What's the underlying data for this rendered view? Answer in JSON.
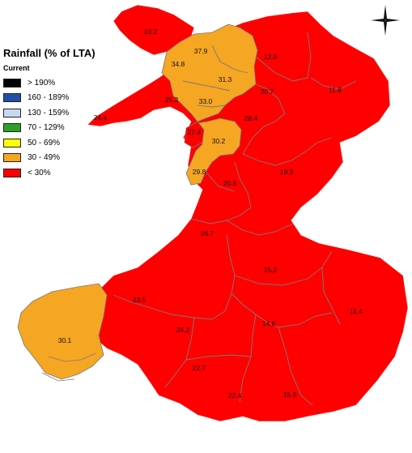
{
  "title": "Rainfall (% of LTA)",
  "legend": {
    "subtitle": "Current",
    "items": [
      {
        "label": "> 190%",
        "color": "#000000"
      },
      {
        "label": "160 - 189%",
        "color": "#1f4fa8"
      },
      {
        "label": "130 - 159%",
        "color": "#c8d8f0"
      },
      {
        "label": "70 - 129%",
        "color": "#2ca02c"
      },
      {
        "label": "50 - 69%",
        "color": "#ffff00"
      },
      {
        "label": "30 - 49%",
        "color": "#f5a623"
      },
      {
        "label": "< 30%",
        "color": "#ff0000"
      }
    ]
  },
  "regions": {
    "anglesey": "13.2",
    "north_orange_a": "37.9",
    "north_orange_b": "34.8",
    "north_orange_c": "31.3",
    "north_orange_d": "33.0",
    "ne_1": "12.9",
    "ne_2": "20.7",
    "ne_3": "11.8",
    "llyn_a": "25.2",
    "llyn_b": "24.4",
    "mid_red_a": "27.4",
    "mid_red_b": "28.4",
    "mid_orange_a": "30.2",
    "mid_orange_b": "29.8",
    "mid_red_c": "20.9",
    "mid_red_d": "19.3",
    "mid_red_e": "26.7",
    "east_a": "15.2",
    "east_b": "11.4",
    "sw_red": "23.5",
    "pembroke": "30.1",
    "south_a": "24.2",
    "south_b": "14.6",
    "south_c": "22.7",
    "south_d": "22.4",
    "south_e": "15.9"
  },
  "colors": {
    "red": "#ff0000",
    "orange": "#f5a623",
    "border": "#7a7a7a"
  },
  "icons": {
    "compass": "north-arrow-icon"
  }
}
